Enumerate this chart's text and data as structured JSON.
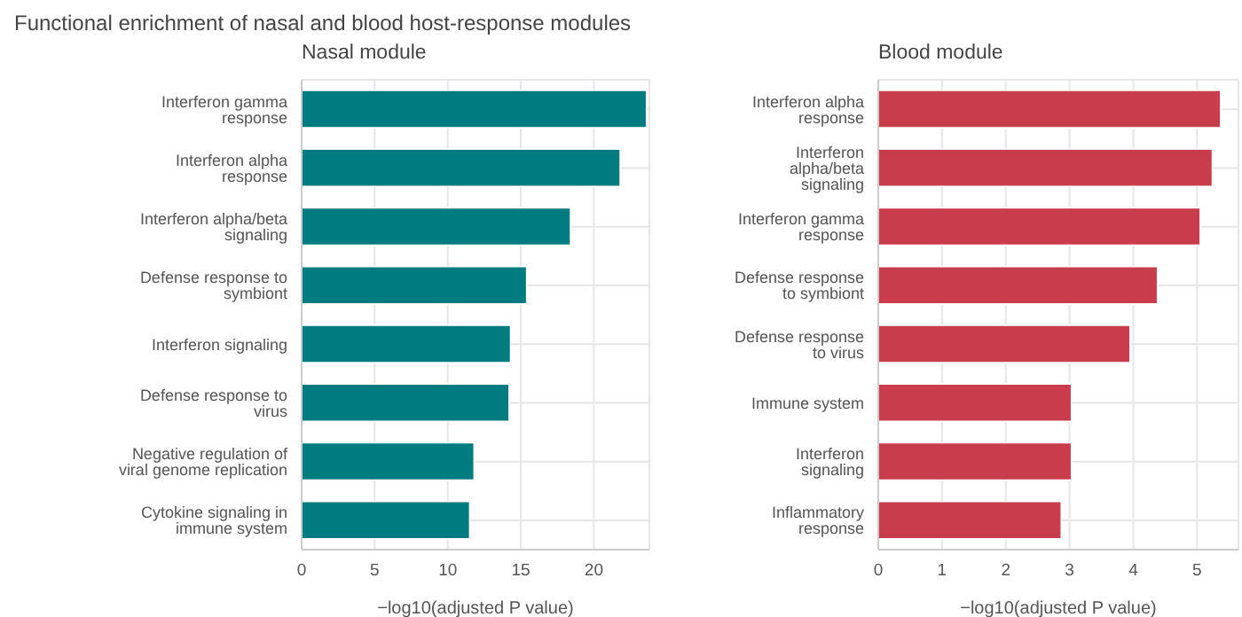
{
  "chart_data": [
    {
      "type": "bar",
      "orientation": "horizontal",
      "title": "Functional enrichment of nasal and blood host-response modules",
      "subtitle": "Nasal module",
      "xlabel": "−log10(adjusted P value)",
      "categories": [
        "Interferon gamma response",
        "Interferon alpha response",
        "Interferon alpha/beta signaling",
        "Defense response to symbiont",
        "Interferon signaling",
        "Defense response to virus",
        "Negative regulation of viral genome replication",
        "Cytokine signaling in immune system"
      ],
      "values": [
        23.6,
        21.8,
        18.4,
        15.4,
        14.3,
        14.2,
        11.8,
        11.5
      ],
      "color": "#007b7f",
      "xlim": [
        0,
        23.8
      ],
      "xticks": [
        0,
        5,
        10,
        15,
        20
      ],
      "grid": true
    },
    {
      "type": "bar",
      "orientation": "horizontal",
      "title": "Blood module",
      "xlabel": "−log10(adjusted P value)",
      "categories": [
        "Interferon alpha response",
        "Interferon alpha/beta signaling",
        "Interferon gamma response",
        "Defense response to symbiont",
        "Defense response to virus",
        "Immune system",
        "Interferon signaling",
        "Inflammatory response"
      ],
      "values": [
        5.37,
        5.24,
        5.05,
        4.38,
        3.95,
        3.03,
        3.03,
        2.87
      ],
      "color": "#c83c4b",
      "xlim": [
        0,
        5.65
      ],
      "xticks": [
        0,
        1,
        2,
        3,
        4,
        5
      ],
      "grid": true
    }
  ]
}
